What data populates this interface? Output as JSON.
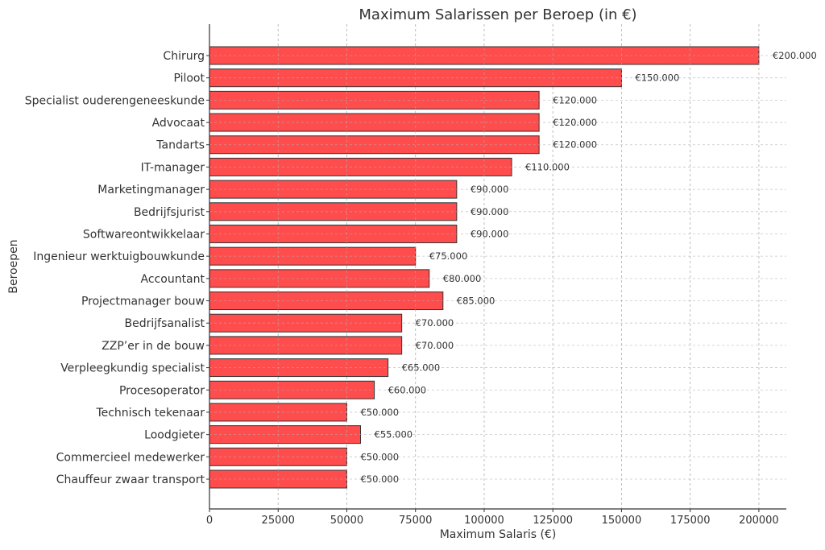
{
  "chart_data": {
    "type": "bar",
    "orientation": "horizontal",
    "title": "Maximum Salarissen per Beroep (in €)",
    "xlabel": "Maximum Salaris (€)",
    "ylabel": "Beroepen",
    "xlim": [
      0,
      210000
    ],
    "xticks": [
      0,
      25000,
      50000,
      75000,
      100000,
      125000,
      150000,
      175000,
      200000
    ],
    "xtick_labels": [
      "0",
      "25000",
      "50000",
      "75000",
      "100000",
      "125000",
      "150000",
      "175000",
      "200000"
    ],
    "grid": true,
    "bar_color": "#ff4c4c",
    "bar_edge_color": "#333333",
    "categories": [
      "Chirurg",
      "Piloot",
      "Specialist ouderengeneeskunde",
      "Advocaat",
      "Tandarts",
      "IT-manager",
      "Marketingmanager",
      "Bedrijfsjurist",
      "Softwareontwikkelaar",
      "Ingenieur werktuigbouwkunde",
      "Accountant",
      "Projectmanager bouw",
      "Bedrijfsanalist",
      "ZZP’er in de bouw",
      "Verpleegkundig specialist",
      "Procesoperator",
      "Technisch tekenaar",
      "Loodgieter",
      "Commercieel medewerker",
      "Chauffeur zwaar transport"
    ],
    "values": [
      200000,
      150000,
      120000,
      120000,
      120000,
      110000,
      90000,
      90000,
      90000,
      75000,
      80000,
      85000,
      70000,
      70000,
      65000,
      60000,
      50000,
      55000,
      50000,
      50000
    ],
    "data_labels": [
      "€200.000",
      "€150.000",
      "€120.000",
      "€120.000",
      "€120.000",
      "€110.000",
      "€90.000",
      "€90.000",
      "€90.000",
      "€75.000",
      "€80.000",
      "€85.000",
      "€70.000",
      "€70.000",
      "€65.000",
      "€60.000",
      "€50.000",
      "€55.000",
      "€50.000",
      "€50.000"
    ]
  }
}
